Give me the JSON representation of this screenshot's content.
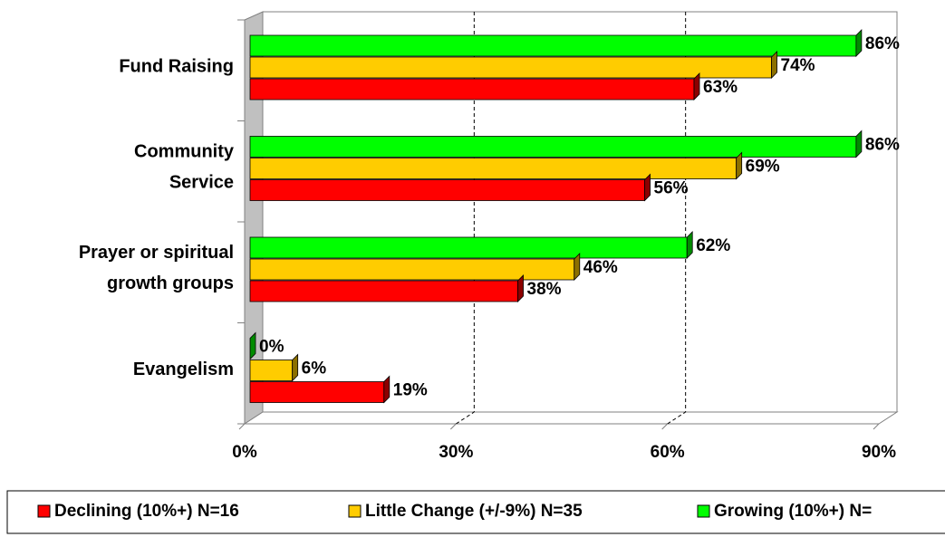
{
  "chart_data": {
    "type": "bar",
    "orientation": "horizontal",
    "three_d": true,
    "categories": [
      "Fund Raising",
      "Community\nService",
      "Prayer or spiritual\ngrowth groups",
      "Evangelism"
    ],
    "series": [
      {
        "name": "Declining (10%+) N=16",
        "color": "#ff0000",
        "values": [
          63,
          56,
          38,
          19
        ],
        "value_labels": [
          "63%",
          "56%",
          "38%",
          "19%"
        ]
      },
      {
        "name": "Little Change (+/-9%) N=35",
        "color": "#ffcc00",
        "values": [
          74,
          69,
          46,
          6
        ],
        "value_labels": [
          "74%",
          "69%",
          "46%",
          "6%"
        ]
      },
      {
        "name": "Growing (10%+) N=",
        "color": "#00ff00",
        "values": [
          86,
          86,
          62,
          0
        ],
        "value_labels": [
          "86%",
          "86%",
          "62%",
          "0%"
        ]
      }
    ],
    "xlim": [
      0,
      90
    ],
    "xticks": [
      {
        "value": 0,
        "label": "0%"
      },
      {
        "value": 30,
        "label": "30%"
      },
      {
        "value": 60,
        "label": "60%"
      },
      {
        "value": 90,
        "label": "90%"
      }
    ],
    "grid": true,
    "legend": "bottom"
  }
}
